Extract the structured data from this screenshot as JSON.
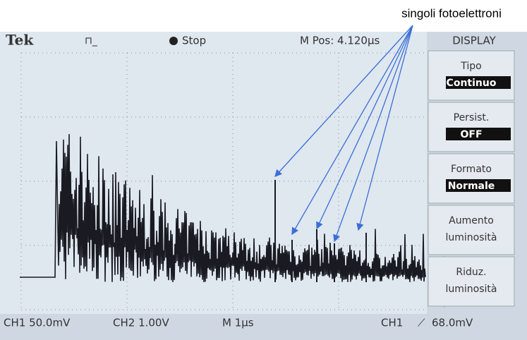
{
  "annotation": "singoli fotoelettroni",
  "top_bar": {
    "brand": "Tek",
    "state": "Stop",
    "position": "M Pos: 4.120µs",
    "menu_title": "DISPLAY"
  },
  "menu": [
    {
      "label": "Tipo",
      "value": "Continuo"
    },
    {
      "label": "Persist.",
      "value": "OFF"
    },
    {
      "label": "Formato",
      "value": "Normale"
    },
    {
      "label": "Aumento",
      "value": "luminosità"
    },
    {
      "label": "Riduz.",
      "value": "luminosità"
    }
  ],
  "bottom_bar": {
    "ch1": "CH1 50.0mV",
    "ch2": "CH2 1.00V",
    "time": "M 1µs",
    "trigger_channel": "CH1",
    "trigger_level": "68.0mV"
  }
}
